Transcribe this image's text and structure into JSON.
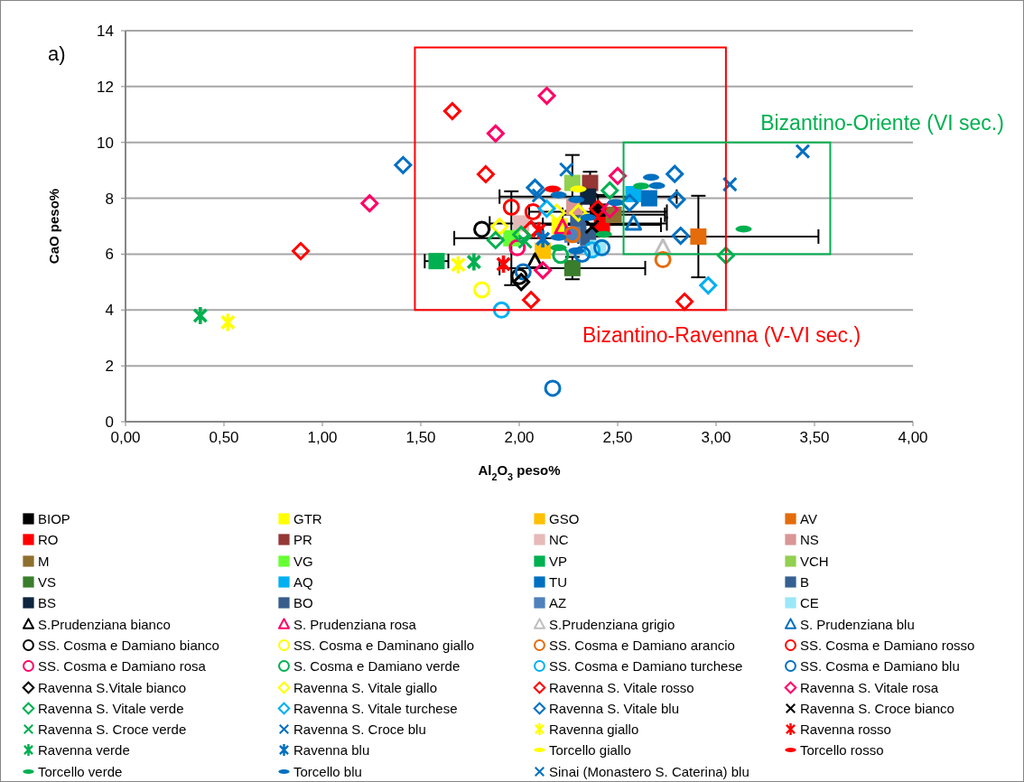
{
  "chart_data": {
    "type": "scatter",
    "xlabel": "Al$_{2}$O$_{3}$ peso%",
    "ylabel": "CaO peso%",
    "annotations": [
      "a)",
      "Bizantino-Ravenna (V-VI sec.)",
      "Bizantino-Oriente (VI sec.)"
    ],
    "xlim": [
      0,
      4
    ],
    "xticks": [
      {
        "value": 0,
        "label": "0,00"
      },
      {
        "value": 0.5,
        "label": "0,50"
      },
      {
        "value": 1,
        "label": "1,00"
      },
      {
        "value": 1.5,
        "label": "1,50"
      },
      {
        "value": 2,
        "label": "2,00"
      },
      {
        "value": 2.5,
        "label": "2,50"
      },
      {
        "value": 3,
        "label": "3,00"
      },
      {
        "value": 3.5,
        "label": "3,50"
      },
      {
        "value": 4,
        "label": "4,00"
      }
    ],
    "ylim": [
      0,
      14
    ],
    "yticks": [
      0,
      2,
      4,
      6,
      8,
      10,
      12,
      14
    ],
    "grid": "y",
    "legend": "bottom",
    "series": [
      {
        "name": "BIOP",
        "color": "#000000",
        "marker": "square",
        "x": [
          2.4
        ],
        "values": [
          7.52
        ],
        "xerrors": [
          0.35
        ],
        "errors": [
          0.6
        ]
      },
      {
        "name": "GTR",
        "color": "#ffff00",
        "marker": "square",
        "x": [
          2.205
        ],
        "values": [
          7.0
        ]
      },
      {
        "name": "GSO",
        "color": "#ffc000",
        "marker": "square",
        "x": [
          2.12
        ],
        "values": [
          6.12
        ]
      },
      {
        "name": "AV",
        "color": "#e46c0a",
        "marker": "square",
        "x": [
          2.91
        ],
        "values": [
          6.63
        ],
        "xerrors": [
          0.61
        ],
        "errors": [
          1.46
        ]
      },
      {
        "name": "RO",
        "color": "#ff0000",
        "marker": "square",
        "x": [
          2.42
        ],
        "values": [
          7.05
        ],
        "xerrors": [
          0.3
        ]
      },
      {
        "name": "PR",
        "color": "#953735",
        "marker": "square",
        "x": [
          2.36
        ],
        "values": [
          8.55
        ],
        "errors": [
          0.4
        ]
      },
      {
        "name": "NC",
        "color": "#e6b9b8",
        "marker": "square",
        "x": [
          2.01
        ],
        "values": [
          7.1
        ]
      },
      {
        "name": "NS",
        "color": "#d99694",
        "marker": "square",
        "x": [
          2.28
        ],
        "values": [
          7.68
        ]
      },
      {
        "name": "M",
        "color": "#8e6f2e",
        "marker": "square",
        "x": [
          2.48
        ],
        "values": [
          7.41
        ],
        "xerrors": [
          0.26
        ]
      },
      {
        "name": "VG",
        "color": "#66ff33",
        "marker": "square",
        "x": [
          1.96
        ],
        "values": [
          6.57
        ],
        "xerrors": [
          0.29
        ],
        "errors": [
          1.68
        ]
      },
      {
        "name": "VP",
        "color": "#00b050",
        "marker": "square",
        "x": [
          1.58
        ],
        "values": [
          5.75
        ],
        "xerrors": [
          0.06
        ]
      },
      {
        "name": "VCH",
        "color": "#92d050",
        "marker": "square",
        "x": [
          2.27
        ],
        "values": [
          8.55
        ],
        "errors": [
          1.0
        ]
      },
      {
        "name": "VS",
        "color": "#3a7d2c",
        "marker": "square",
        "x": [
          2.27
        ],
        "values": [
          5.5
        ],
        "xerrors": [
          0.37
        ],
        "errors": [
          0.4
        ]
      },
      {
        "name": "AQ",
        "color": "#00b0f0",
        "marker": "square",
        "x": [
          2.58
        ],
        "values": [
          8.15
        ]
      },
      {
        "name": "TU",
        "color": "#0070c0",
        "marker": "square",
        "x": [
          2.66
        ],
        "values": [
          8.0
        ]
      },
      {
        "name": "B",
        "color": "#376092",
        "marker": "square",
        "x": [
          2.3
        ],
        "values": [
          7.1
        ],
        "xerrors": [
          0.45
        ]
      },
      {
        "name": "BS",
        "color": "#0f243e",
        "marker": "square",
        "x": [
          2.35
        ],
        "values": [
          8.06
        ],
        "xerrors": [
          0.45
        ]
      },
      {
        "name": "BO",
        "color": "#385d8a",
        "marker": "square",
        "x": [
          2.35
        ],
        "values": [
          6.6
        ]
      },
      {
        "name": "AZ",
        "color": "#4f81bd",
        "marker": "square",
        "x": [
          2.27
        ],
        "values": [
          6.7
        ]
      },
      {
        "name": "CE",
        "color": "#9be7f7",
        "marker": "square",
        "x": [
          2.4
        ],
        "values": [
          6.22
        ]
      },
      {
        "name": "S.Prudenziana bianco",
        "color": "#000000",
        "marker": "triangle",
        "x": [
          2.08
        ],
        "values": [
          5.72
        ]
      },
      {
        "name": "S. Prudenziana rosa",
        "color": "#ff0066",
        "marker": "triangle",
        "x": [
          2.22
        ],
        "values": [
          6.95
        ]
      },
      {
        "name": "S.Prudenziana grigio",
        "color": "#bfbfbf",
        "marker": "triangle",
        "x": [
          2.73
        ],
        "values": [
          6.23
        ]
      },
      {
        "name": "S. Prudenziana blu",
        "color": "#0070c0",
        "marker": "triangle",
        "x": [
          2.58
        ],
        "values": [
          7.09
        ]
      },
      {
        "name": "SS. Cosma e Damiano bianco",
        "color": "#000000",
        "marker": "circle",
        "x": [
          1.81,
          2.0
        ],
        "values": [
          6.89,
          5.2
        ]
      },
      {
        "name": "SS. Cosma e Daminano giallo",
        "color": "#ffff00",
        "marker": "circle",
        "x": [
          1.81
        ],
        "values": [
          4.72
        ]
      },
      {
        "name": "SS. Cosma e Damiano arancio",
        "color": "#e46c0a",
        "marker": "circle",
        "x": [
          2.73,
          2.27
        ],
        "values": [
          5.8,
          6.7
        ]
      },
      {
        "name": "SS. Cosma e Damiano rosso",
        "color": "#ff0000",
        "marker": "circle",
        "x": [
          1.96,
          2.07
        ],
        "values": [
          7.68,
          7.52
        ]
      },
      {
        "name": "SS. Cosma e Damiano rosa",
        "color": "#ff0066",
        "marker": "circle",
        "x": [
          1.99
        ],
        "values": [
          6.23
        ]
      },
      {
        "name": "S. Cosma e Damiano verde",
        "color": "#00b050",
        "marker": "circle",
        "x": [
          2.21
        ],
        "values": [
          5.96
        ]
      },
      {
        "name": "SS. Cosma e Damiano turchese",
        "color": "#00b0f0",
        "marker": "circle",
        "x": [
          1.91,
          2.37
        ],
        "values": [
          4.0,
          6.15
        ]
      },
      {
        "name": "SS. Cosma e Damiano blu",
        "color": "#0070c0",
        "marker": "circle",
        "x": [
          2.17,
          2.02,
          2.32,
          2.42
        ],
        "values": [
          1.2,
          5.37,
          6.0,
          6.23
        ]
      },
      {
        "name": "Ravenna S.Vitale bianco",
        "color": "#000000",
        "marker": "diamond",
        "x": [
          2.01
        ],
        "values": [
          5.0
        ]
      },
      {
        "name": "Ravenna S. Vitale giallo",
        "color": "#ffff00",
        "marker": "diamond",
        "x": [
          1.9,
          2.19,
          2.3
        ],
        "values": [
          6.98,
          7.48,
          7.48
        ]
      },
      {
        "name": "Ravenna S. Vitale rosso",
        "color": "#ff0000",
        "marker": "diamond",
        "x": [
          0.89,
          1.66,
          1.83,
          2.06,
          2.84,
          2.4,
          2.06
        ],
        "values": [
          6.11,
          11.12,
          8.86,
          4.36,
          4.3,
          7.63,
          6.9
        ]
      },
      {
        "name": "Ravenna S. Vitale rosa",
        "color": "#ff0066",
        "marker": "diamond",
        "x": [
          1.24,
          1.88,
          2.14,
          2.5,
          2.12,
          2.46
        ],
        "values": [
          7.82,
          10.32,
          11.67,
          8.8,
          5.42,
          7.6
        ]
      },
      {
        "name": "Ravenna S. Vitale verde",
        "color": "#00b050",
        "marker": "diamond",
        "x": [
          1.88,
          2.01,
          2.46,
          3.05
        ],
        "values": [
          6.5,
          6.7,
          8.28,
          5.95
        ]
      },
      {
        "name": "Ravenna S. Vitale turchese",
        "color": "#00b0f0",
        "marker": "diamond",
        "x": [
          2.14,
          2.96
        ],
        "values": [
          7.63,
          4.88
        ]
      },
      {
        "name": "Ravenna S. Vitale blu",
        "color": "#0070c0",
        "marker": "diamond",
        "x": [
          1.41,
          2.08,
          2.56,
          2.79,
          2.8,
          2.82
        ],
        "values": [
          9.19,
          8.38,
          7.84,
          8.87,
          7.95,
          6.66
        ]
      },
      {
        "name": "Ravenna S. Croce bianco",
        "color": "#000000",
        "marker": "cross",
        "x": [
          2.37
        ],
        "values": [
          6.98
        ]
      },
      {
        "name": "Ravenna S. Croce verde",
        "color": "#00b050",
        "marker": "cross",
        "x": [
          2.03
        ],
        "values": [
          6.45
        ]
      },
      {
        "name": "Ravenna S. Croce blu",
        "color": "#0070c0",
        "marker": "cross",
        "x": [
          2.24,
          2.1
        ],
        "values": [
          9.03,
          8.1
        ]
      },
      {
        "name": "Ravenna giallo",
        "color": "#ffff00",
        "marker": "star",
        "x": [
          0.52,
          1.69
        ],
        "values": [
          3.56,
          5.62
        ]
      },
      {
        "name": "Ravenna rosso",
        "color": "#ff0000",
        "marker": "star",
        "x": [
          1.92,
          2.1
        ],
        "values": [
          5.64,
          6.85
        ]
      },
      {
        "name": "Ravenna verde",
        "color": "#00b050",
        "marker": "star",
        "x": [
          0.38,
          1.77
        ],
        "values": [
          3.8,
          5.72
        ]
      },
      {
        "name": "Ravenna blu",
        "color": "#0070c0",
        "marker": "star",
        "x": [
          2.12
        ],
        "values": [
          6.55
        ]
      },
      {
        "name": "Torcello giallo",
        "color": "#ffff00",
        "x": [
          2.3
        ],
        "values": [
          8.33
        ]
      },
      {
        "name": "Torcello rosso",
        "color": "#ff0000",
        "x": [
          2.17
        ],
        "values": [
          8.33
        ]
      },
      {
        "name": "Torcello verde",
        "color": "#00b050",
        "x": [
          3.14,
          2.62,
          2.43,
          2.2
        ],
        "values": [
          6.9,
          8.44,
          6.71,
          6.23
        ]
      },
      {
        "name": "Torcello blu",
        "color": "#0070c0",
        "x": [
          2.2,
          2.67,
          2.7,
          2.35,
          2.2,
          2.29,
          2.29,
          2.49
        ],
        "values": [
          8.12,
          8.75,
          8.45,
          7.31,
          6.6,
          6.12,
          7.95,
          7.85
        ]
      },
      {
        "name": "Sinai (Monastero S. Caterina) blu",
        "color": "#0070c0",
        "marker": "cross",
        "x": [
          3.44,
          3.07
        ],
        "values": [
          9.68,
          8.5
        ]
      }
    ]
  }
}
